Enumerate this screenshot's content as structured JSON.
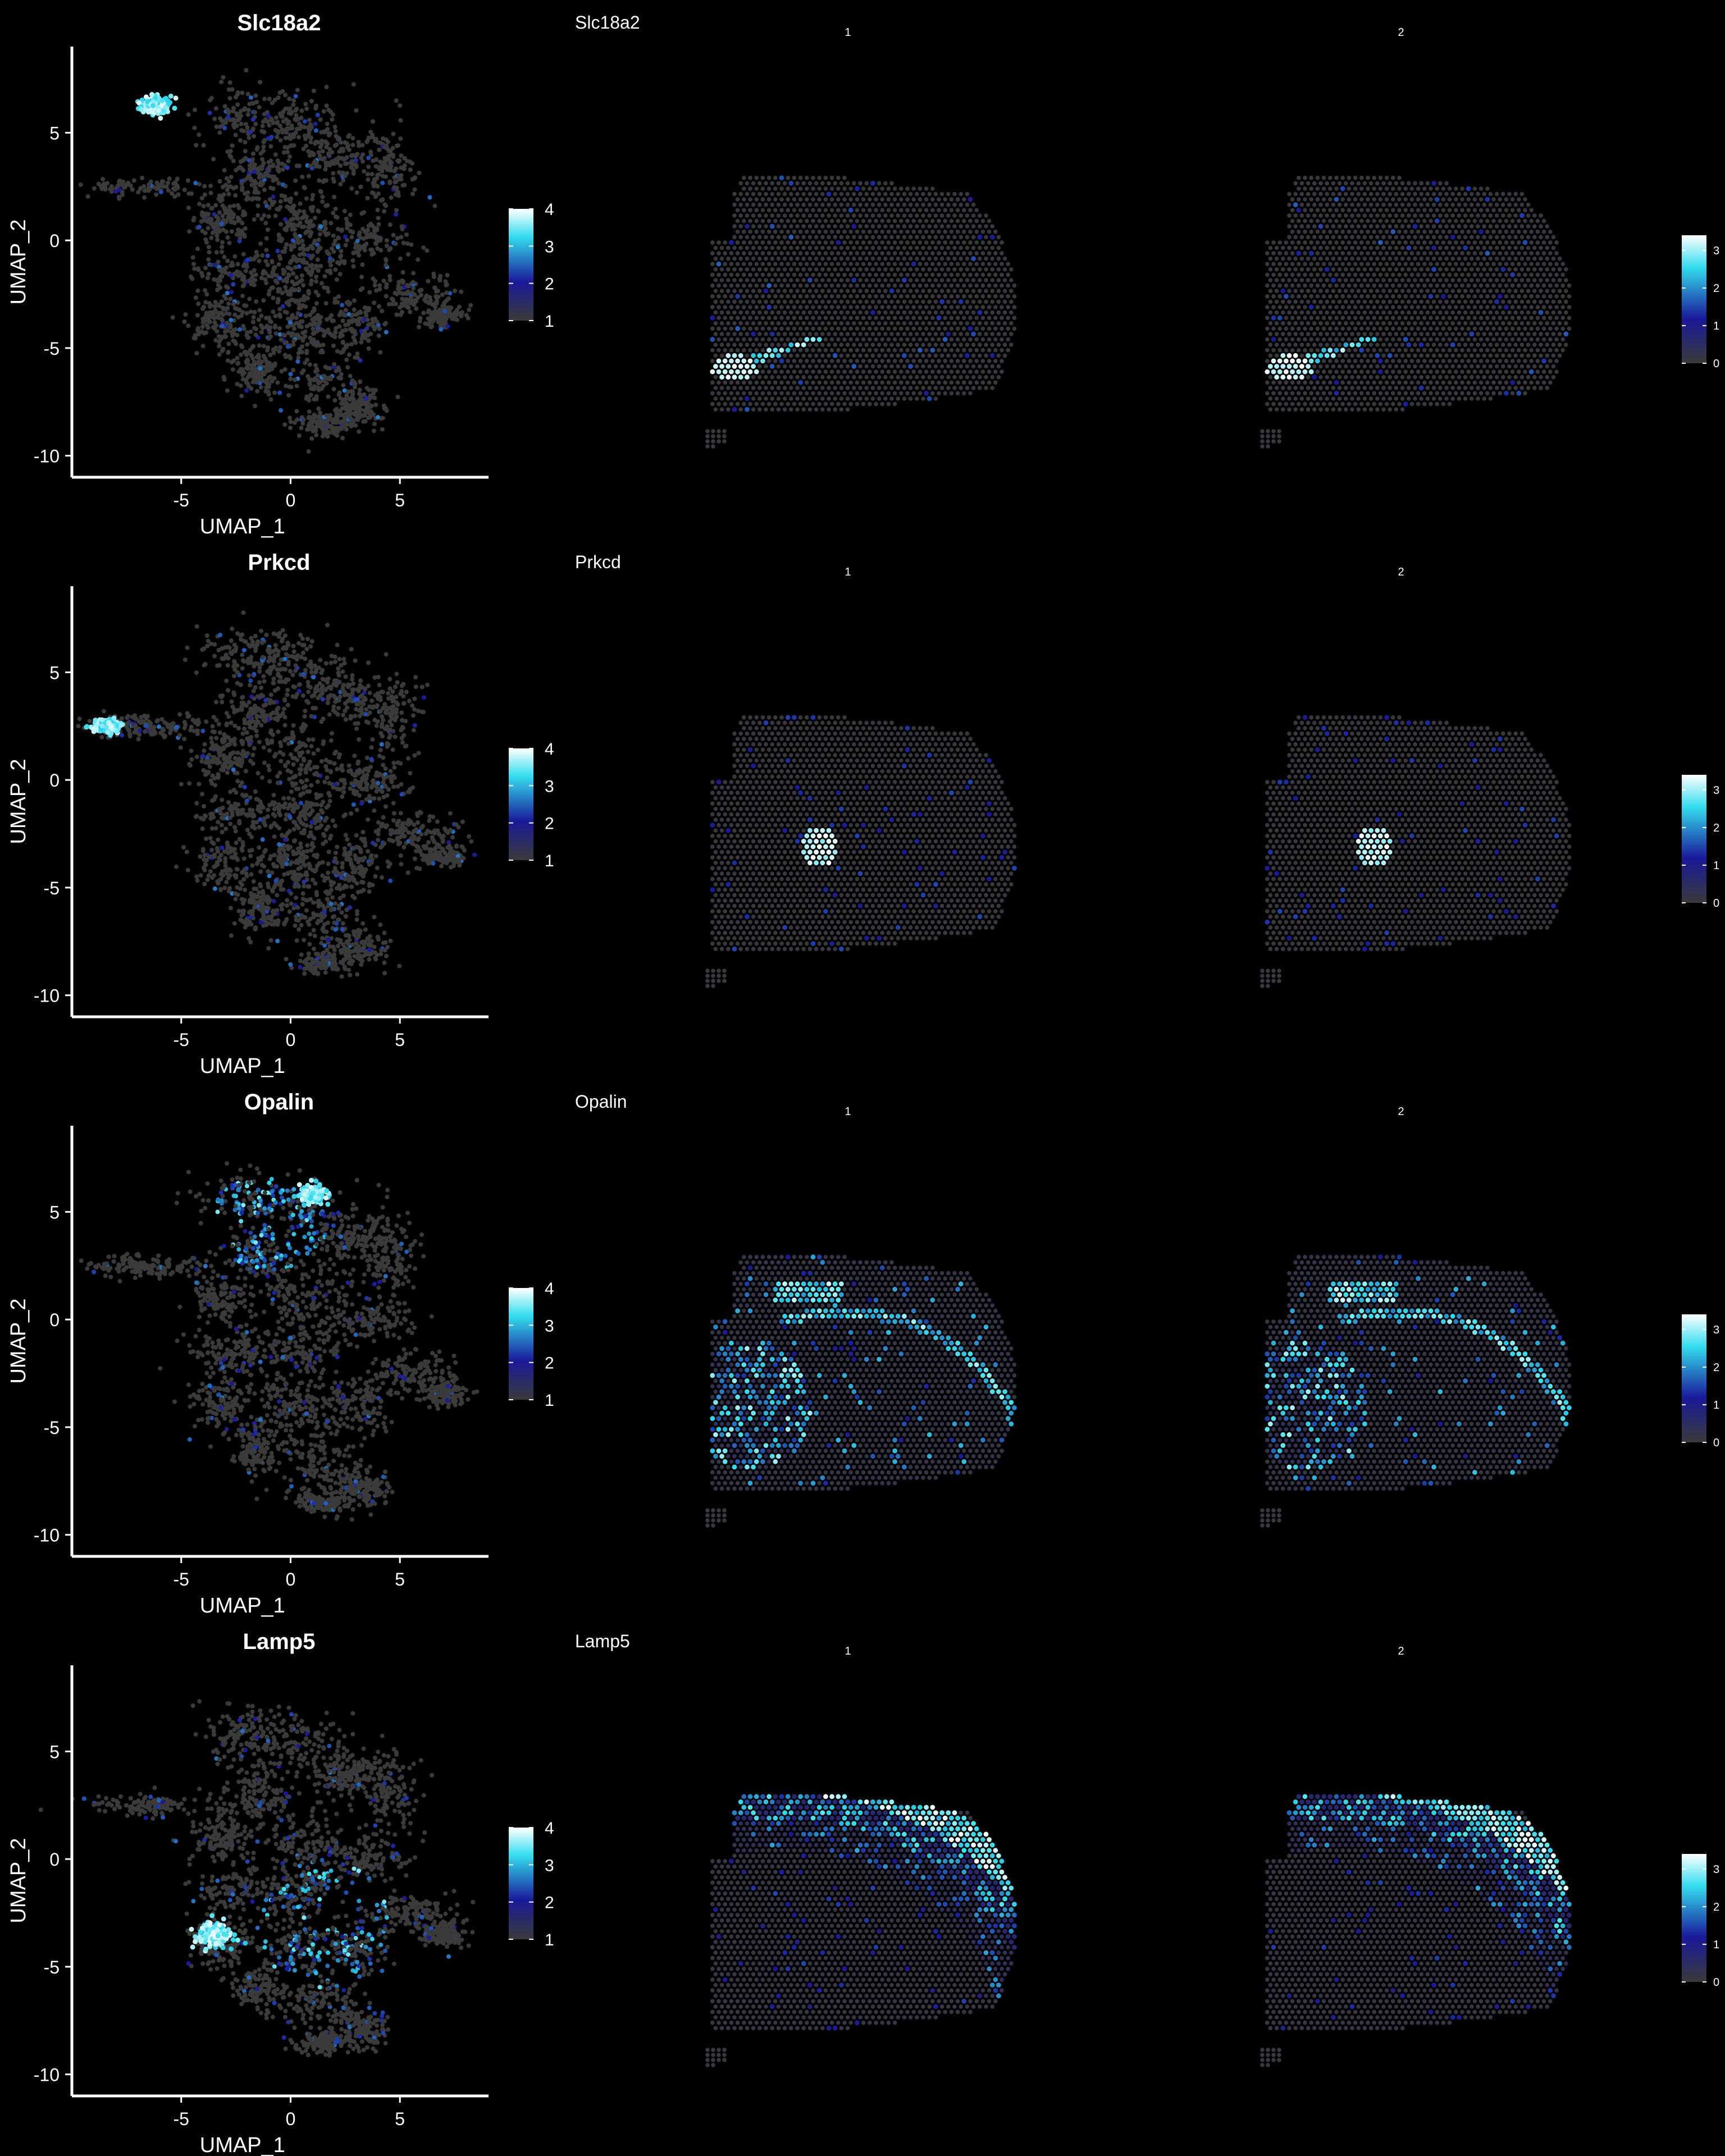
{
  "chart_data": [
    {
      "type": "scatter",
      "title": "Slc18a2",
      "xlabel": "UMAP_1",
      "ylabel": "UMAP_2",
      "xlim": [
        -10,
        9
      ],
      "ylim": [
        -11,
        9
      ],
      "xticks": [
        "-5",
        "0",
        "5"
      ],
      "yticks": [
        "-10",
        "-5",
        "0",
        "5"
      ],
      "legend": {
        "ticks": [
          "1",
          "2",
          "3",
          "4"
        ],
        "range": [
          1,
          4
        ],
        "placement": "right"
      },
      "hotspot": {
        "x": -6.2,
        "y": 6.3,
        "spread_x": 0.7,
        "spread_y": 0.4
      },
      "spatial": {
        "title": "Slc18a2",
        "facets": [
          "1",
          "2"
        ],
        "legend_ticks": [
          "0",
          "1",
          "2",
          "3"
        ],
        "pattern": "striatum-ventral"
      }
    },
    {
      "type": "scatter",
      "title": "Prkcd",
      "xlabel": "UMAP_1",
      "ylabel": "UMAP_2",
      "xlim": [
        -10,
        9
      ],
      "ylim": [
        -11,
        9
      ],
      "xticks": [
        "-5",
        "0",
        "5"
      ],
      "yticks": [
        "-10",
        "-5",
        "0",
        "5"
      ],
      "legend": {
        "ticks": [
          "1",
          "2",
          "3",
          "4"
        ],
        "range": [
          1,
          4
        ],
        "placement": "right"
      },
      "hotspot": {
        "x": -8.5,
        "y": 2.5,
        "spread_x": 0.7,
        "spread_y": 0.3
      },
      "spatial": {
        "title": "Prkcd",
        "facets": [
          "1",
          "2"
        ],
        "legend_ticks": [
          "0",
          "1",
          "2",
          "3"
        ],
        "pattern": "thalamus-blob"
      }
    },
    {
      "type": "scatter",
      "title": "Opalin",
      "xlabel": "UMAP_1",
      "ylabel": "UMAP_2",
      "xlim": [
        -10,
        9
      ],
      "ylim": [
        -11,
        9
      ],
      "xticks": [
        "-5",
        "0",
        "5"
      ],
      "yticks": [
        "-10",
        "-5",
        "0",
        "5"
      ],
      "legend": {
        "ticks": [
          "1",
          "2",
          "3",
          "4"
        ],
        "range": [
          1,
          4
        ],
        "placement": "right"
      },
      "hotspot": {
        "x": 1.0,
        "y": 5.8,
        "spread_x": 0.6,
        "spread_y": 0.4
      },
      "spatial": {
        "title": "Opalin",
        "facets": [
          "1",
          "2"
        ],
        "legend_ticks": [
          "0",
          "1",
          "2",
          "3"
        ],
        "pattern": "white-matter"
      }
    },
    {
      "type": "scatter",
      "title": "Lamp5",
      "xlabel": "UMAP_1",
      "ylabel": "UMAP_2",
      "xlim": [
        -10,
        9
      ],
      "ylim": [
        -11,
        9
      ],
      "xticks": [
        "-5",
        "0",
        "5"
      ],
      "yticks": [
        "-10",
        "-5",
        "0",
        "5"
      ],
      "legend": {
        "ticks": [
          "1",
          "2",
          "3",
          "4"
        ],
        "range": [
          1,
          4
        ],
        "placement": "right"
      },
      "hotspot": {
        "x": -3.5,
        "y": -3.5,
        "spread_x": 0.8,
        "spread_y": 0.6
      },
      "spatial": {
        "title": "Lamp5",
        "facets": [
          "1",
          "2"
        ],
        "legend_ticks": [
          "0",
          "1",
          "2",
          "3"
        ],
        "pattern": "cortex-layers"
      }
    }
  ],
  "colors": {
    "background": "#000000",
    "cell_low": "#3a3a3a",
    "mid": "#1a1a9a",
    "high": "#33ddee",
    "max": "#ffffff"
  }
}
